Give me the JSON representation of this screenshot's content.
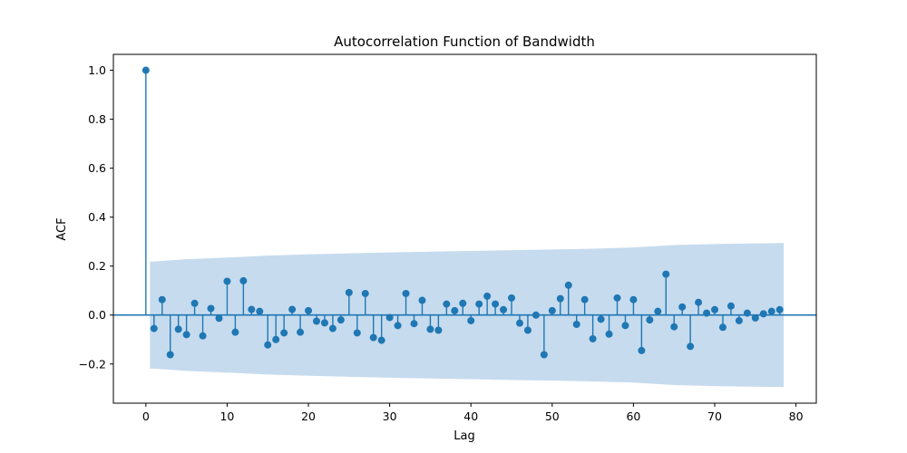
{
  "chart_data": {
    "type": "scatter",
    "title": "Autocorrelation Function of Bandwidth",
    "xlabel": "Lag",
    "ylabel": "ACF",
    "xlim": [
      -4,
      82.5
    ],
    "ylim": [
      -0.36,
      1.065
    ],
    "xticks": [
      0,
      10,
      20,
      30,
      40,
      50,
      60,
      70,
      80
    ],
    "yticks": [
      -0.2,
      0.0,
      0.2,
      0.4,
      0.6,
      0.8,
      1.0
    ],
    "xtick_labels": [
      "0",
      "10",
      "20",
      "30",
      "40",
      "50",
      "60",
      "70",
      "80"
    ],
    "ytick_labels": [
      "−0.2",
      "0.0",
      "0.2",
      "0.4",
      "0.6",
      "0.8",
      "1.0"
    ],
    "grid": false,
    "colors": {
      "stem": "#1f77b4",
      "band": "#c6dbee",
      "zero_line": "#1f77b4"
    },
    "series": [
      {
        "x": [
          0,
          1,
          2,
          3,
          4,
          5,
          6,
          7,
          8,
          9,
          10,
          11,
          12,
          13,
          14,
          15,
          16,
          17,
          18,
          19,
          20,
          21,
          22,
          23,
          24,
          25,
          26,
          27,
          28,
          29,
          30,
          31,
          32,
          33,
          34,
          35,
          36,
          37,
          38,
          39,
          40,
          41,
          42,
          43,
          44,
          45,
          46,
          47,
          48,
          49,
          50,
          51,
          52,
          53,
          54,
          55,
          56,
          57,
          58,
          59,
          60,
          61,
          62,
          63,
          64,
          65,
          66,
          67,
          68,
          69,
          70,
          71,
          72,
          73,
          74,
          75,
          76,
          77,
          78
        ],
        "y": [
          1.0,
          -0.055,
          0.063,
          -0.162,
          -0.058,
          -0.08,
          0.048,
          -0.085,
          0.027,
          -0.013,
          0.138,
          -0.07,
          0.14,
          0.023,
          0.015,
          -0.122,
          -0.1,
          -0.073,
          0.023,
          -0.07,
          0.018,
          -0.025,
          -0.032,
          -0.055,
          -0.02,
          0.092,
          -0.073,
          0.088,
          -0.092,
          -0.103,
          -0.01,
          -0.043,
          0.088,
          -0.035,
          0.06,
          -0.058,
          -0.062,
          0.045,
          0.018,
          0.048,
          -0.023,
          0.045,
          0.077,
          0.045,
          0.022,
          0.07,
          -0.033,
          -0.062,
          0.0,
          -0.162,
          0.018,
          0.067,
          0.122,
          -0.038,
          0.063,
          -0.097,
          -0.017,
          -0.078,
          0.07,
          -0.043,
          0.063,
          -0.145,
          -0.02,
          0.015,
          0.167,
          -0.048,
          0.033,
          -0.128,
          0.052,
          0.008,
          0.022,
          -0.05,
          0.037,
          -0.023,
          0.008,
          -0.012,
          0.005,
          0.015,
          0.022
        ]
      }
    ],
    "confidence_band": {
      "x": [
        0.5,
        1,
        5,
        10,
        15,
        20,
        25,
        30,
        35,
        40,
        45,
        50,
        55,
        60,
        65,
        70,
        75,
        78.5
      ],
      "upper": [
        0.219,
        0.219,
        0.228,
        0.235,
        0.243,
        0.248,
        0.252,
        0.256,
        0.259,
        0.262,
        0.265,
        0.268,
        0.271,
        0.276,
        0.286,
        0.29,
        0.293,
        0.294
      ],
      "lower": [
        -0.219,
        -0.219,
        -0.228,
        -0.235,
        -0.243,
        -0.248,
        -0.252,
        -0.256,
        -0.259,
        -0.262,
        -0.265,
        -0.268,
        -0.271,
        -0.276,
        -0.286,
        -0.29,
        -0.293,
        -0.294
      ]
    }
  }
}
